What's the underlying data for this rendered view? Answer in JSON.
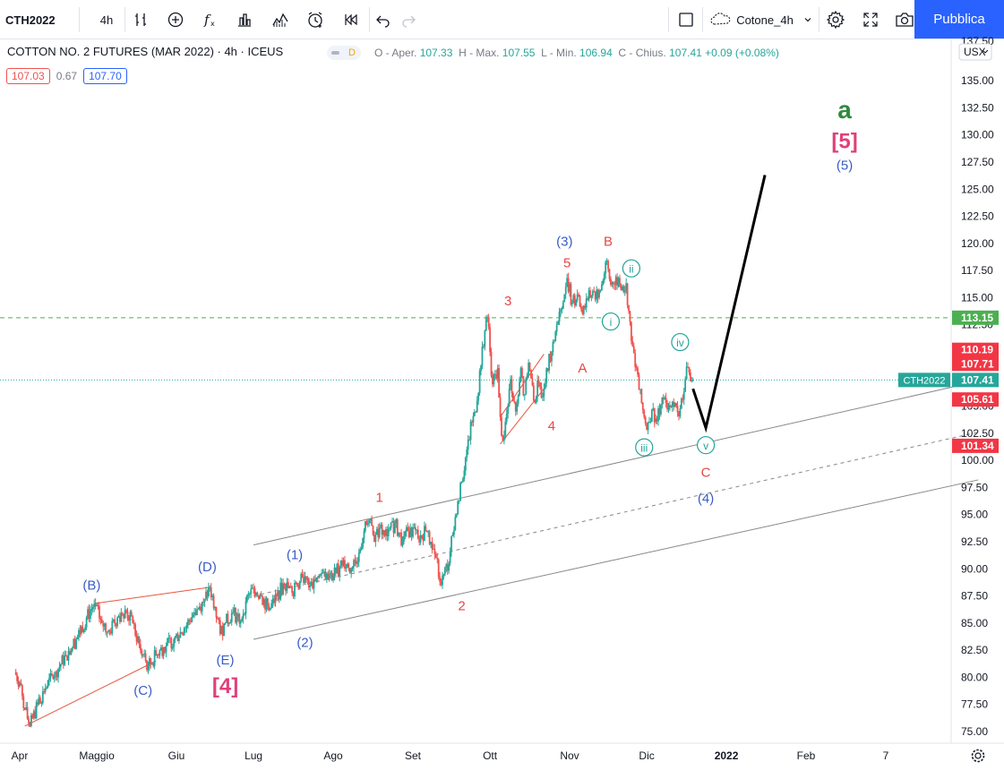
{
  "toolbar": {
    "symbol": "CTH2022",
    "interval": "4h",
    "layout_name": "Cotone_4h",
    "publish_label": "Pubblica"
  },
  "legend": {
    "title": "COTTON NO. 2 FUTURES (MAR 2022) · 4h · ICEUS",
    "badge": "D",
    "o_label": "O - Aper.",
    "o": "107.33",
    "h_label": "H - Max.",
    "h": "107.55",
    "l_label": "L - Min.",
    "l": "106.94",
    "c_label": "C - Chius.",
    "c": "107.41",
    "change": "+0.09 (+0.08%)",
    "bid": "107.03",
    "spread": "0.67",
    "ask": "107.70"
  },
  "currency": "USX",
  "colors": {
    "up": "#26a69a",
    "down": "#ef5350",
    "red_label": "#e84545",
    "blue_label": "#3a5cc8",
    "teal_label": "#22a39a",
    "green_label": "#2e8b3e",
    "pink_label": "#e0407a",
    "accent": "#2962ff"
  },
  "chart_data": {
    "type": "line",
    "title": "COTTON NO. 2 FUTURES (MAR 2022) · 4h · ICEUS",
    "price_ticks": [
      "135.00",
      "132.50",
      "130.00",
      "127.50",
      "125.00",
      "122.50",
      "120.00",
      "117.50",
      "115.00",
      "112.50",
      "110.00",
      "107.50",
      "105.00",
      "102.50",
      "100.00",
      "97.50",
      "95.00",
      "92.50",
      "90.00",
      "87.50",
      "85.00",
      "82.50",
      "80.00",
      "77.50",
      "75.00"
    ],
    "top_tick": "137.50",
    "time_ticks": [
      {
        "label": "Apr",
        "t": 0
      },
      {
        "label": "Maggio",
        "t": 30
      },
      {
        "label": "Giu",
        "t": 61
      },
      {
        "label": "Lug",
        "t": 91
      },
      {
        "label": "Ago",
        "t": 122
      },
      {
        "label": "Set",
        "t": 153
      },
      {
        "label": "Ott",
        "t": 183
      },
      {
        "label": "Nov",
        "t": 214
      },
      {
        "label": "Dic",
        "t": 244
      },
      {
        "label": "2022",
        "t": 275
      },
      {
        "label": "Feb",
        "t": 306
      },
      {
        "label": "7",
        "t": 337
      }
    ],
    "ylim": [
      74.3,
      137.6
    ],
    "price_series": [
      [
        -2,
        80.5
      ],
      [
        0,
        79.5
      ],
      [
        2,
        77
      ],
      [
        4,
        75.5
      ],
      [
        7,
        77.5
      ],
      [
        10,
        79
      ],
      [
        14,
        80.5
      ],
      [
        18,
        82
      ],
      [
        22,
        83.5
      ],
      [
        26,
        85.5
      ],
      [
        29,
        86.8
      ],
      [
        32,
        85
      ],
      [
        35,
        84.2
      ],
      [
        38,
        85.5
      ],
      [
        41,
        86.2
      ],
      [
        44,
        85
      ],
      [
        47,
        82.5
      ],
      [
        50,
        81
      ],
      [
        53,
        82
      ],
      [
        56,
        82.8
      ],
      [
        60,
        83.5
      ],
      [
        64,
        84.5
      ],
      [
        68,
        86
      ],
      [
        72,
        87.2
      ],
      [
        74,
        88.3
      ],
      [
        76,
        86.5
      ],
      [
        78,
        84
      ],
      [
        80,
        85
      ],
      [
        83,
        86
      ],
      [
        86,
        85.2
      ],
      [
        88,
        87
      ],
      [
        91,
        88.2
      ],
      [
        94,
        87.5
      ],
      [
        97,
        86.2
      ],
      [
        100,
        87.5
      ],
      [
        103,
        88.6
      ],
      [
        106,
        87.8
      ],
      [
        108,
        88.5
      ],
      [
        111,
        89.3
      ],
      [
        114,
        88.2
      ],
      [
        117,
        89.5
      ],
      [
        120,
        89
      ],
      [
        123,
        89.6
      ],
      [
        126,
        90.8
      ],
      [
        129,
        90
      ],
      [
        132,
        91.5
      ],
      [
        134,
        93.5
      ],
      [
        136,
        94.5
      ],
      [
        138,
        92.5
      ],
      [
        140,
        93.8
      ],
      [
        143,
        93
      ],
      [
        146,
        94.2
      ],
      [
        149,
        92.5
      ],
      [
        152,
        93.8
      ],
      [
        155,
        92.8
      ],
      [
        158,
        93.5
      ],
      [
        160,
        92.5
      ],
      [
        162,
        91
      ],
      [
        164,
        88.5
      ],
      [
        165,
        89.5
      ],
      [
        167,
        90.5
      ],
      [
        168,
        93
      ],
      [
        170,
        95
      ],
      [
        172,
        98
      ],
      [
        174,
        101
      ],
      [
        176,
        103.5
      ],
      [
        178,
        105.5
      ],
      [
        180,
        110.5
      ],
      [
        182,
        113.2
      ],
      [
        183,
        110
      ],
      [
        184,
        107
      ],
      [
        186,
        108.5
      ],
      [
        187,
        104
      ],
      [
        188,
        101.8
      ],
      [
        190,
        105
      ],
      [
        191,
        107.5
      ],
      [
        193,
        104.5
      ],
      [
        195,
        108.5
      ],
      [
        196,
        106
      ],
      [
        198,
        109
      ],
      [
        200,
        105.5
      ],
      [
        202,
        107.2
      ],
      [
        203,
        105.8
      ],
      [
        205,
        108.5
      ],
      [
        207,
        110
      ],
      [
        209,
        112.5
      ],
      [
        211,
        114
      ],
      [
        213,
        116.8
      ],
      [
        215,
        114.5
      ],
      [
        217,
        115.3
      ],
      [
        219,
        113.5
      ],
      [
        221,
        114.8
      ],
      [
        223,
        115.6
      ],
      [
        225,
        115
      ],
      [
        227,
        116.6
      ],
      [
        228,
        118.3
      ],
      [
        230,
        116.2
      ],
      [
        232,
        116.9
      ],
      [
        234,
        115.7
      ],
      [
        236,
        116.3
      ],
      [
        238,
        111
      ],
      [
        240,
        108.5
      ],
      [
        241,
        106.5
      ],
      [
        243,
        104
      ],
      [
        244,
        102.8
      ],
      [
        246,
        104.7
      ],
      [
        248,
        103.6
      ],
      [
        250,
        105.8
      ],
      [
        252,
        104.7
      ],
      [
        254,
        105.4
      ],
      [
        256,
        104.4
      ],
      [
        258,
        105.6
      ],
      [
        259,
        107.5
      ],
      [
        260,
        108.6
      ],
      [
        261,
        107.3
      ],
      [
        262,
        107.41
      ]
    ],
    "projection": [
      [
        262,
        106.6
      ],
      [
        267,
        103
      ],
      [
        290,
        126.3
      ]
    ],
    "channel": {
      "upper": [
        [
          91,
          92.2
        ],
        [
          373,
          107.3
        ]
      ],
      "middle": [
        [
          91,
          87.5
        ],
        [
          373,
          102.6
        ]
      ],
      "lower": [
        [
          91,
          83.5
        ],
        [
          373,
          98.2
        ]
      ]
    },
    "triangles": [
      [
        [
          29,
          86.8
        ],
        [
          74,
          88.3
        ]
      ],
      [
        [
          2,
          75.5
        ],
        [
          53,
          81.5
        ]
      ],
      [
        [
          187,
          104
        ],
        [
          204,
          109.8
        ]
      ],
      [
        [
          187,
          101.5
        ],
        [
          204,
          106.6
        ]
      ]
    ],
    "reference_line": 113.15,
    "current_price_line": 107.41,
    "price_badges": [
      {
        "value": "113.15",
        "y": 113.15,
        "kind": "green"
      },
      {
        "value": "110.19",
        "y": 110.19,
        "kind": "red"
      },
      {
        "value": "107.71",
        "y": 108.9,
        "kind": "red"
      },
      {
        "value": "107.41",
        "y": 107.41,
        "kind": "teal",
        "prefix": "CTH2022"
      },
      {
        "value": "105.61",
        "y": 105.61,
        "kind": "red"
      },
      {
        "value": "101.34",
        "y": 101.34,
        "kind": "red"
      }
    ],
    "wave_labels": [
      {
        "text": "(B)",
        "t": 28,
        "p": 88.5,
        "c": "blue"
      },
      {
        "text": "(C)",
        "t": 48,
        "p": 78.8,
        "c": "blue"
      },
      {
        "text": "(D)",
        "t": 73,
        "p": 90.2,
        "c": "blue"
      },
      {
        "text": "(E)",
        "t": 80,
        "p": 81.6,
        "c": "blue"
      },
      {
        "text": "[4]",
        "t": 80,
        "p": 79.3,
        "c": "pink",
        "big": true
      },
      {
        "text": "(1)",
        "t": 107,
        "p": 91.3,
        "c": "blue"
      },
      {
        "text": "(2)",
        "t": 111,
        "p": 83.2,
        "c": "blue"
      },
      {
        "text": "1",
        "t": 140,
        "p": 96.6,
        "c": "red"
      },
      {
        "text": "2",
        "t": 172,
        "p": 86.6,
        "c": "red"
      },
      {
        "text": "3",
        "t": 190,
        "p": 114.7,
        "c": "red"
      },
      {
        "text": "4",
        "t": 207,
        "p": 103.2,
        "c": "red"
      },
      {
        "text": "5",
        "t": 213,
        "p": 118.2,
        "c": "red"
      },
      {
        "text": "(3)",
        "t": 212,
        "p": 120.2,
        "c": "blue"
      },
      {
        "text": "A",
        "t": 219,
        "p": 108.5,
        "c": "red"
      },
      {
        "text": "B",
        "t": 229,
        "p": 120.2,
        "c": "red"
      },
      {
        "text": "i",
        "t": 230,
        "p": 112.8,
        "c": "teal",
        "circle": true
      },
      {
        "text": "ii",
        "t": 238,
        "p": 117.7,
        "c": "teal",
        "circle": true
      },
      {
        "text": "iii",
        "t": 243,
        "p": 101.2,
        "c": "teal",
        "circle": true
      },
      {
        "text": "iv",
        "t": 257,
        "p": 110.9,
        "c": "teal",
        "circle": true
      },
      {
        "text": "v",
        "t": 267,
        "p": 101.4,
        "c": "teal",
        "circle": true
      },
      {
        "text": "C",
        "t": 267,
        "p": 98.9,
        "c": "red"
      },
      {
        "text": "(4)",
        "t": 267,
        "p": 96.5,
        "c": "blue"
      },
      {
        "text": "(5)",
        "t": 321,
        "p": 127.2,
        "c": "blue"
      },
      {
        "text": "[5]",
        "t": 321,
        "p": 129.5,
        "c": "pink",
        "big": true
      },
      {
        "text": "a",
        "t": 321,
        "p": 132.3,
        "c": "green",
        "big": true
      }
    ]
  }
}
